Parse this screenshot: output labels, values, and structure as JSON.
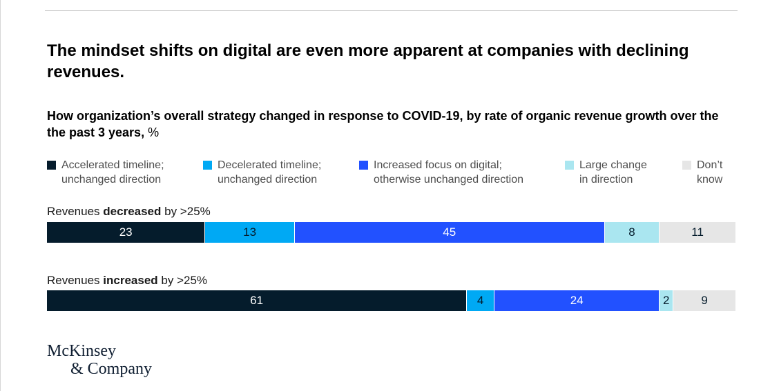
{
  "headline": "The mindset shifts on digital are even more apparent at companies with declining revenues.",
  "subtitle": {
    "main": "How organization’s overall strategy changed in response to COVID-19, by rate of organic revenue growth over the the past 3 years,",
    "unit": "%"
  },
  "logo": {
    "line1": "McKinsey",
    "line2": "& Company"
  },
  "colors": {
    "accelerated": "#051c2c",
    "decelerated": "#00a9f4",
    "increased_focus": "#2251ff",
    "large_change": "#aae6f0",
    "dont_know": "#e6e6e6"
  },
  "chart_data": {
    "type": "bar",
    "stacked": true,
    "orientation": "horizontal",
    "unit": "%",
    "categories": [
      {
        "prefix": "Revenues ",
        "emphasis": "decreased",
        "suffix": " by >25%"
      },
      {
        "prefix": "Revenues ",
        "emphasis": "increased",
        "suffix": " by >25%"
      }
    ],
    "series": [
      {
        "name": "Accelerated timeline;\nunchanged direction",
        "color": "#051c2c",
        "label_color": "#ffffff",
        "values": [
          23,
          61
        ]
      },
      {
        "name": "Decelerated timeline;\nunchanged direction",
        "color": "#00a9f4",
        "label_color": "#051c2c",
        "values": [
          13,
          4
        ]
      },
      {
        "name": "Increased focus on digital;\notherwise unchanged direction",
        "color": "#2251ff",
        "label_color": "#ffffff",
        "values": [
          45,
          24
        ]
      },
      {
        "name": "Large change\nin direction",
        "color": "#aae6f0",
        "label_color": "#051c2c",
        "values": [
          8,
          2
        ]
      },
      {
        "name": "Don’t\nknow",
        "color": "#e6e6e6",
        "label_color": "#051c2c",
        "values": [
          11,
          9
        ]
      }
    ],
    "legend_position": "top",
    "grid": false
  }
}
